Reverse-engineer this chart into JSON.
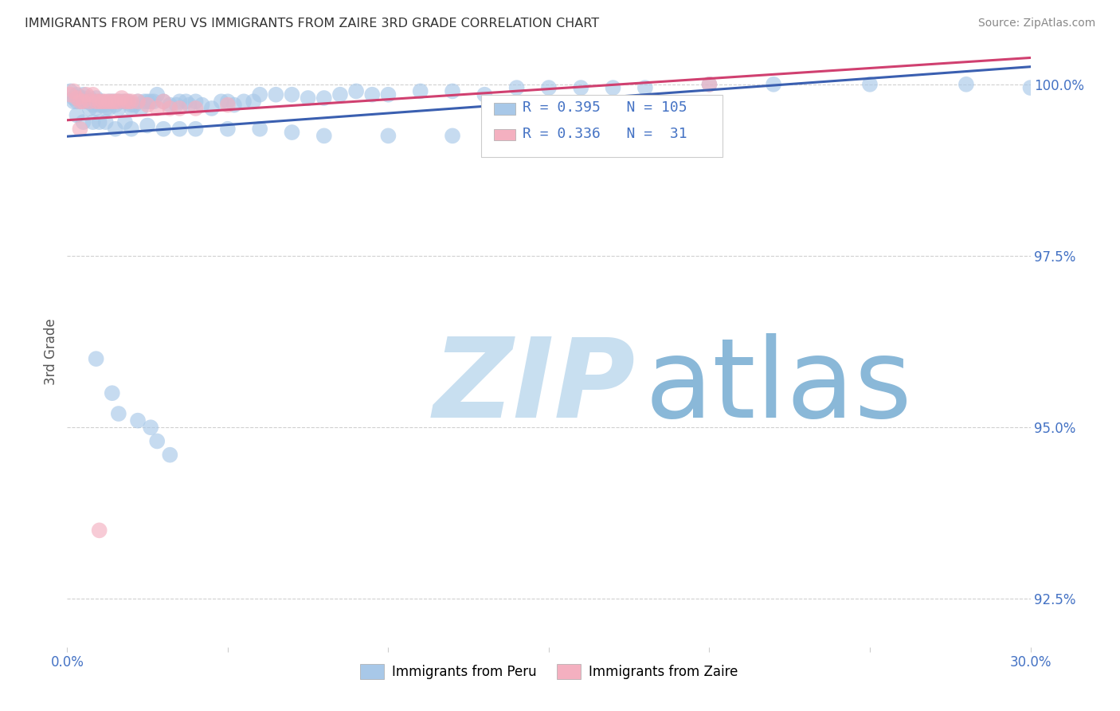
{
  "title": "IMMIGRANTS FROM PERU VS IMMIGRANTS FROM ZAIRE 3RD GRADE CORRELATION CHART",
  "source_text": "Source: ZipAtlas.com",
  "ylabel": "3rd Grade",
  "x_label_peru": "Immigrants from Peru",
  "x_label_zaire": "Immigrants from Zaire",
  "xlim": [
    0.0,
    0.3
  ],
  "ylim": [
    0.918,
    1.004
  ],
  "x_ticks": [
    0.0,
    0.05,
    0.1,
    0.15,
    0.2,
    0.25,
    0.3
  ],
  "x_tick_labels": [
    "0.0%",
    "",
    "",
    "",
    "",
    "",
    "30.0%"
  ],
  "y_ticks_right": [
    0.925,
    0.95,
    0.975,
    1.0
  ],
  "y_tick_labels_right": [
    "92.5%",
    "95.0%",
    "97.5%",
    "100.0%"
  ],
  "r_peru": 0.395,
  "n_peru": 105,
  "r_zaire": 0.336,
  "n_zaire": 31,
  "color_peru": "#a8c8e8",
  "color_zaire": "#f4b0c0",
  "color_peru_line": "#3a5fb0",
  "color_zaire_line": "#d04070",
  "color_title": "#333333",
  "color_source": "#888888",
  "color_right_axis": "#4472c4",
  "color_watermark_zip": "#c8dff0",
  "color_watermark_atlas": "#8ab8d8",
  "watermark_zip": "ZIP",
  "watermark_atlas": "atlas",
  "peru_x": [
    0.001,
    0.002,
    0.002,
    0.003,
    0.003,
    0.004,
    0.004,
    0.005,
    0.005,
    0.006,
    0.006,
    0.007,
    0.007,
    0.007,
    0.008,
    0.008,
    0.009,
    0.009,
    0.01,
    0.01,
    0.011,
    0.011,
    0.012,
    0.012,
    0.013,
    0.013,
    0.014,
    0.015,
    0.015,
    0.016,
    0.016,
    0.017,
    0.018,
    0.019,
    0.02,
    0.02,
    0.021,
    0.022,
    0.023,
    0.024,
    0.025,
    0.026,
    0.027,
    0.028,
    0.03,
    0.032,
    0.034,
    0.035,
    0.037,
    0.038,
    0.04,
    0.042,
    0.045,
    0.048,
    0.05,
    0.052,
    0.055,
    0.058,
    0.06,
    0.065,
    0.07,
    0.075,
    0.08,
    0.085,
    0.09,
    0.095,
    0.1,
    0.11,
    0.12,
    0.13,
    0.14,
    0.15,
    0.16,
    0.17,
    0.18,
    0.2,
    0.22,
    0.25,
    0.28,
    0.3,
    0.003,
    0.005,
    0.008,
    0.01,
    0.012,
    0.015,
    0.018,
    0.02,
    0.025,
    0.03,
    0.035,
    0.04,
    0.05,
    0.06,
    0.07,
    0.08,
    0.1,
    0.12,
    0.009,
    0.014,
    0.016,
    0.022,
    0.026,
    0.028,
    0.032
  ],
  "peru_y": [
    0.999,
    0.998,
    0.9975,
    0.9985,
    0.9975,
    0.998,
    0.9975,
    0.9985,
    0.998,
    0.9975,
    0.9975,
    0.998,
    0.9975,
    0.9965,
    0.997,
    0.9975,
    0.998,
    0.9965,
    0.9975,
    0.997,
    0.9975,
    0.997,
    0.9965,
    0.997,
    0.9975,
    0.9965,
    0.9975,
    0.9975,
    0.997,
    0.9975,
    0.9965,
    0.9975,
    0.9975,
    0.9975,
    0.9965,
    0.997,
    0.997,
    0.9975,
    0.9965,
    0.9975,
    0.9975,
    0.9975,
    0.9975,
    0.9985,
    0.9975,
    0.997,
    0.997,
    0.9975,
    0.9975,
    0.997,
    0.9975,
    0.997,
    0.9965,
    0.9975,
    0.9975,
    0.997,
    0.9975,
    0.9975,
    0.9985,
    0.9985,
    0.9985,
    0.998,
    0.998,
    0.9985,
    0.999,
    0.9985,
    0.9985,
    0.999,
    0.999,
    0.9985,
    0.9995,
    0.9995,
    0.9995,
    0.9995,
    0.9995,
    1.0,
    1.0,
    1.0,
    1.0,
    0.9995,
    0.9955,
    0.9945,
    0.9945,
    0.9945,
    0.9945,
    0.9935,
    0.9945,
    0.9935,
    0.994,
    0.9935,
    0.9935,
    0.9935,
    0.9935,
    0.9935,
    0.993,
    0.9925,
    0.9925,
    0.9925,
    0.96,
    0.955,
    0.952,
    0.951,
    0.95,
    0.948,
    0.946
  ],
  "zaire_x": [
    0.001,
    0.002,
    0.003,
    0.004,
    0.005,
    0.006,
    0.007,
    0.008,
    0.009,
    0.01,
    0.011,
    0.012,
    0.013,
    0.014,
    0.015,
    0.016,
    0.017,
    0.018,
    0.019,
    0.02,
    0.022,
    0.025,
    0.028,
    0.03,
    0.032,
    0.035,
    0.04,
    0.05,
    0.2,
    0.004,
    0.01
  ],
  "zaire_y": [
    0.9985,
    0.999,
    0.998,
    0.9975,
    0.9975,
    0.9985,
    0.9975,
    0.9985,
    0.9975,
    0.9975,
    0.9975,
    0.9975,
    0.9975,
    0.9975,
    0.9975,
    0.9975,
    0.998,
    0.9975,
    0.9975,
    0.9975,
    0.9975,
    0.997,
    0.9965,
    0.9975,
    0.9965,
    0.9965,
    0.9965,
    0.997,
    1.0,
    0.9935,
    0.935
  ]
}
